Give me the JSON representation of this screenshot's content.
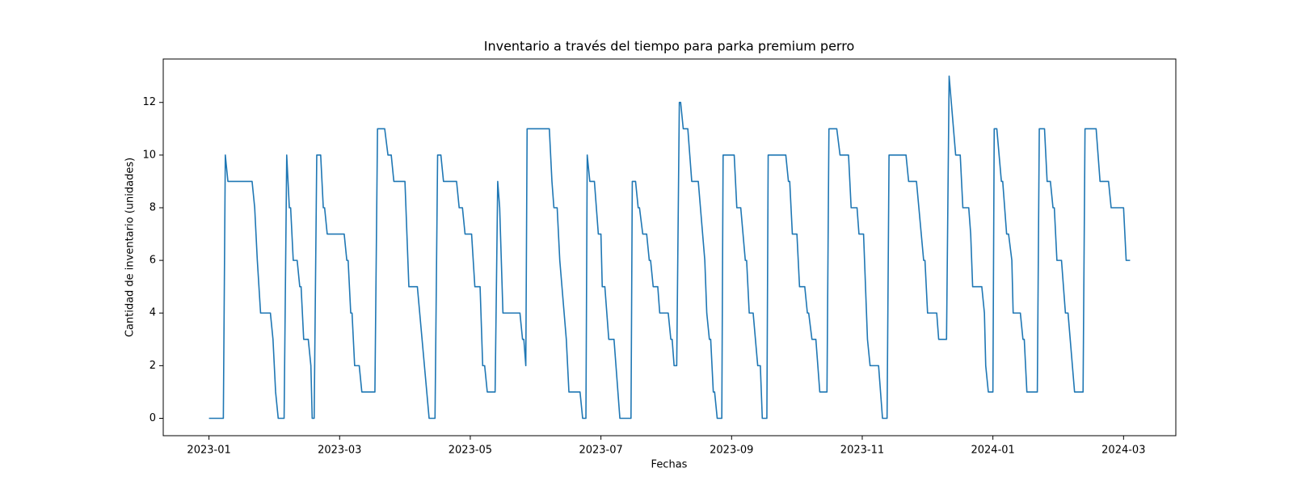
{
  "chart_data": {
    "type": "line",
    "title": "Inventario a través del tiempo para parka premium perro",
    "xlabel": "Fechas",
    "ylabel": "Cantidad de inventario (unidades)",
    "x": [
      0,
      0.22,
      0.25,
      0.29,
      0.66,
      0.7,
      0.74,
      0.79,
      0.94,
      0.98,
      1.02,
      1.06,
      1.15,
      1.19,
      1.23,
      1.25,
      1.29,
      1.35,
      1.39,
      1.41,
      1.45,
      1.52,
      1.56,
      1.58,
      1.61,
      1.65,
      1.71,
      1.75,
      1.77,
      1.81,
      2.07,
      2.11,
      2.13,
      2.17,
      2.19,
      2.23,
      2.3,
      2.34,
      2.54,
      2.58,
      2.69,
      2.74,
      2.79,
      2.83,
      3.0,
      3.06,
      3.19,
      3.37,
      3.46,
      3.5,
      3.55,
      3.59,
      3.79,
      3.83,
      3.88,
      3.92,
      4.02,
      4.07,
      4.15,
      4.19,
      4.22,
      4.26,
      4.38,
      4.42,
      4.45,
      4.5,
      4.76,
      4.8,
      4.82,
      4.85,
      4.87,
      5.21,
      5.25,
      5.28,
      5.33,
      5.37,
      5.47,
      5.51,
      5.68,
      5.72,
      5.77,
      5.79,
      5.83,
      5.9,
      5.96,
      6.0,
      6.02,
      6.06,
      6.12,
      6.2,
      6.29,
      6.46,
      6.48,
      6.53,
      6.57,
      6.59,
      6.64,
      6.7,
      6.74,
      6.76,
      6.8,
      6.87,
      6.9,
      7.03,
      7.07,
      7.09,
      7.12,
      7.16,
      7.2,
      7.22,
      7.26,
      7.33,
      7.39,
      7.49,
      7.59,
      7.62,
      7.66,
      7.68,
      7.72,
      7.74,
      7.78,
      7.85,
      7.87,
      8.04,
      8.08,
      8.14,
      8.21,
      8.23,
      8.27,
      8.33,
      8.4,
      8.44,
      8.47,
      8.54,
      8.56,
      8.83,
      8.87,
      8.89,
      8.93,
      9.0,
      9.04,
      9.12,
      9.16,
      9.18,
      9.23,
      9.29,
      9.35,
      9.46,
      9.49,
      9.61,
      9.66,
      9.79,
      9.83,
      9.92,
      9.95,
      10.02,
      10.08,
      10.12,
      10.25,
      10.31,
      10.38,
      10.41,
      10.67,
      10.71,
      10.83,
      10.94,
      10.96,
      11.0,
      11.14,
      11.17,
      11.29,
      11.33,
      11.43,
      11.5,
      11.54,
      11.63,
      11.66,
      11.69,
      11.83,
      11.87,
      11.89,
      11.93,
      12.0,
      12.02,
      12.06,
      12.13,
      12.15,
      12.21,
      12.24,
      12.29,
      12.31,
      12.42,
      12.46,
      12.48,
      12.52,
      12.68,
      12.71,
      12.79,
      12.83,
      12.88,
      12.92,
      12.94,
      12.98,
      13.05,
      13.11,
      13.15,
      13.25,
      13.38,
      13.41,
      13.58,
      13.64,
      13.77,
      13.81,
      14.0,
      14.04,
      14.1
    ],
    "series": [
      {
        "color": "#1f77b4",
        "values": [
          0,
          0,
          10,
          9,
          9,
          8,
          6,
          4,
          4,
          3,
          1,
          0,
          0,
          10,
          8,
          8,
          6,
          6,
          5,
          5,
          3,
          3,
          2,
          0,
          0,
          10,
          10,
          8,
          8,
          7,
          7,
          6,
          6,
          4,
          4,
          2,
          2,
          1,
          1,
          11,
          11,
          10,
          10,
          9,
          9,
          5,
          5,
          0,
          0,
          10,
          10,
          9,
          9,
          8,
          8,
          7,
          7,
          5,
          5,
          2,
          2,
          1,
          1,
          9,
          8,
          4,
          4,
          3,
          3,
          2,
          11,
          11,
          9,
          8,
          8,
          6,
          3,
          1,
          1,
          0,
          0,
          10,
          9,
          9,
          7,
          7,
          5,
          5,
          3,
          3,
          0,
          0,
          9,
          9,
          8,
          8,
          7,
          7,
          6,
          6,
          5,
          5,
          4,
          4,
          3,
          3,
          2,
          2,
          12,
          12,
          11,
          11,
          9,
          9,
          6,
          4,
          3,
          3,
          1,
          1,
          0,
          0,
          10,
          10,
          8,
          8,
          6,
          6,
          4,
          4,
          2,
          2,
          0,
          0,
          10,
          10,
          9,
          9,
          7,
          7,
          5,
          5,
          4,
          4,
          3,
          3,
          1,
          1,
          11,
          11,
          10,
          10,
          8,
          8,
          7,
          7,
          3,
          2,
          2,
          0,
          0,
          10,
          10,
          9,
          9,
          6,
          6,
          4,
          4,
          3,
          3,
          13,
          10,
          10,
          8,
          8,
          7,
          5,
          5,
          4,
          2,
          1,
          1,
          11,
          11,
          9,
          9,
          7,
          7,
          6,
          4,
          4,
          3,
          3,
          1,
          1,
          11,
          11,
          9,
          9,
          8,
          8,
          6,
          6,
          4,
          4,
          1,
          1,
          11,
          11,
          9,
          9,
          8,
          8,
          6,
          6
        ]
      }
    ],
    "xlim": [
      -0.7,
      14.8
    ],
    "xticks": [
      {
        "value": 0,
        "label": "2023-01"
      },
      {
        "value": 2,
        "label": "2023-03"
      },
      {
        "value": 4,
        "label": "2023-05"
      },
      {
        "value": 6,
        "label": "2023-07"
      },
      {
        "value": 8,
        "label": "2023-09"
      },
      {
        "value": 10,
        "label": "2023-11"
      },
      {
        "value": 12,
        "label": "2024-01"
      },
      {
        "value": 14,
        "label": "2024-03"
      }
    ],
    "ylim": [
      -0.66,
      13.65
    ],
    "yticks": [
      0,
      2,
      4,
      6,
      8,
      10,
      12
    ]
  }
}
